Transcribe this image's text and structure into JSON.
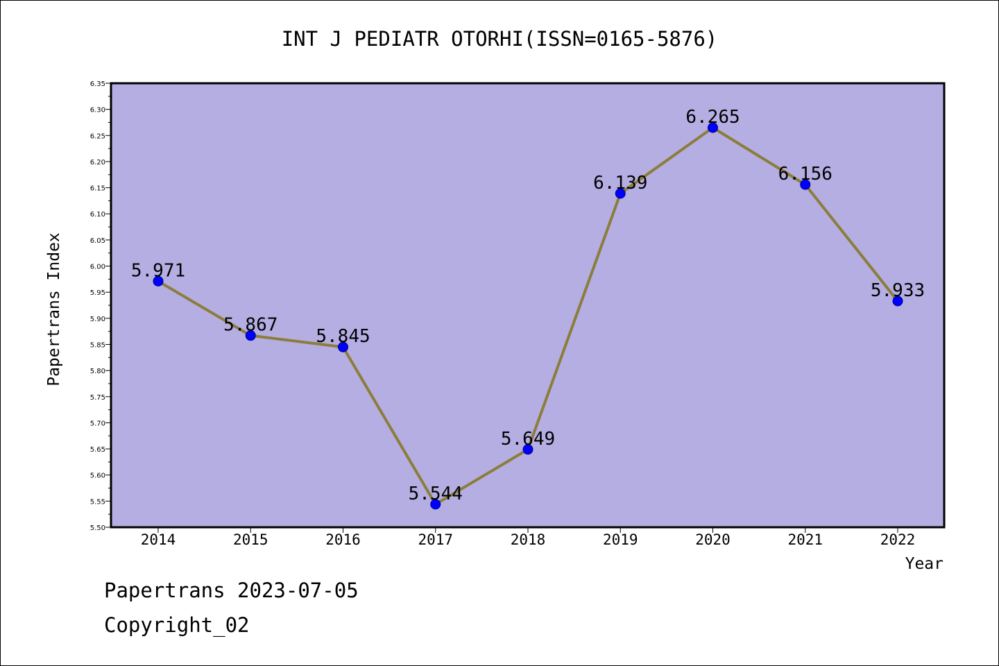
{
  "chart_data": {
    "type": "line",
    "title": "INT J PEDIATR OTORHI(ISSN=0165-5876)",
    "xlabel": "Year",
    "ylabel": "Papertrans Index",
    "categories": [
      "2014",
      "2015",
      "2016",
      "2017",
      "2018",
      "2019",
      "2020",
      "2021",
      "2022"
    ],
    "series": [
      {
        "values": [
          5.971,
          5.867,
          5.845,
          5.544,
          5.649,
          6.139,
          6.265,
          6.156,
          5.933
        ],
        "labels": [
          "5.971",
          "5.867",
          "5.845",
          "5.544",
          "5.649",
          "6.139",
          "6.265",
          "6.156",
          "5.933"
        ]
      }
    ],
    "ylim": [
      5.5,
      6.35
    ],
    "yticks": [
      "5.50",
      "5.55",
      "5.60",
      "5.65",
      "5.70",
      "5.75",
      "5.80",
      "5.85",
      "5.90",
      "5.95",
      "6.00",
      "6.05",
      "6.10",
      "6.15",
      "6.20",
      "6.25",
      "6.30",
      "6.35"
    ],
    "grid": false,
    "legend": "none",
    "colors": {
      "plot_background": "#b4aee2",
      "line": "#8b7d3a",
      "marker": "#0000ff",
      "marker_edge": "#00008b",
      "axis": "#000000"
    }
  },
  "footer": {
    "line1": "Papertrans 2023-07-05",
    "line2": "Copyright_02"
  }
}
